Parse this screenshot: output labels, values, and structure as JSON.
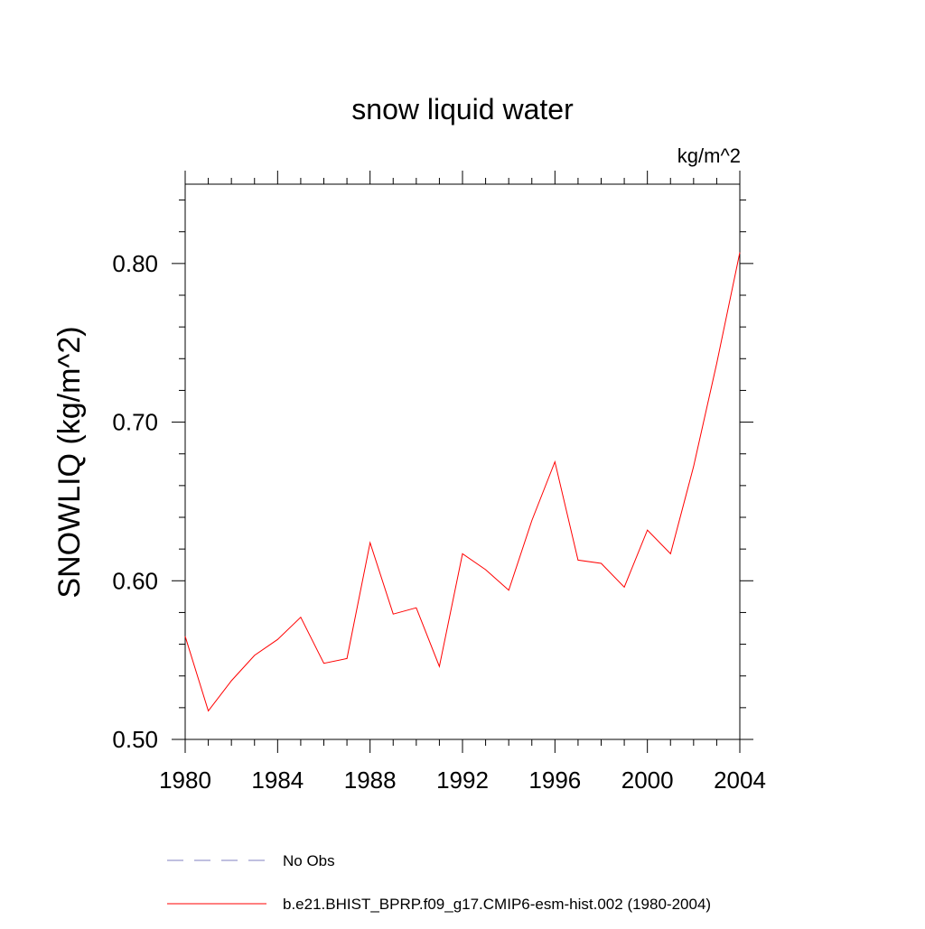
{
  "chart_data": {
    "type": "line",
    "title": "snow liquid water",
    "units": "kg/m^2",
    "ylabel": "SNOWLIQ  (kg/m^2)",
    "xlabel": "",
    "xlim": [
      1980,
      2004
    ],
    "ylim": [
      0.5,
      0.85
    ],
    "x_ticks": [
      1980,
      1984,
      1988,
      1992,
      1996,
      2000,
      2004
    ],
    "x_tick_labels": [
      "1980",
      "1984",
      "1988",
      "1992",
      "1996",
      "2000",
      "2004"
    ],
    "y_ticks": [
      0.5,
      0.6,
      0.7,
      0.8
    ],
    "y_tick_labels": [
      "0.50",
      "0.60",
      "0.70",
      "0.80"
    ],
    "grid": false,
    "legend_position": "bottom",
    "x": [
      1980,
      1981,
      1982,
      1983,
      1984,
      1985,
      1986,
      1987,
      1988,
      1989,
      1990,
      1991,
      1992,
      1993,
      1994,
      1995,
      1996,
      1997,
      1998,
      1999,
      2000,
      2001,
      2002,
      2003,
      2004
    ],
    "series": [
      {
        "name": "b.e21.BHIST_BPRP.f09_g17.CMIP6-esm-hist.002 (1980-2004)",
        "color": "#ff0000",
        "style": "solid",
        "values": [
          0.565,
          0.518,
          0.537,
          0.553,
          0.563,
          0.577,
          0.548,
          0.551,
          0.624,
          0.579,
          0.583,
          0.546,
          0.617,
          0.607,
          0.594,
          0.638,
          0.675,
          0.613,
          0.611,
          0.596,
          0.632,
          0.617,
          0.672,
          0.737,
          0.807
        ]
      }
    ],
    "legend": [
      {
        "label": "No Obs",
        "color": "#8080c0",
        "style": "dashed"
      },
      {
        "label": "b.e21.BHIST_BPRP.f09_g17.CMIP6-esm-hist.002 (1980-2004)",
        "color": "#ff0000",
        "style": "solid"
      }
    ]
  }
}
